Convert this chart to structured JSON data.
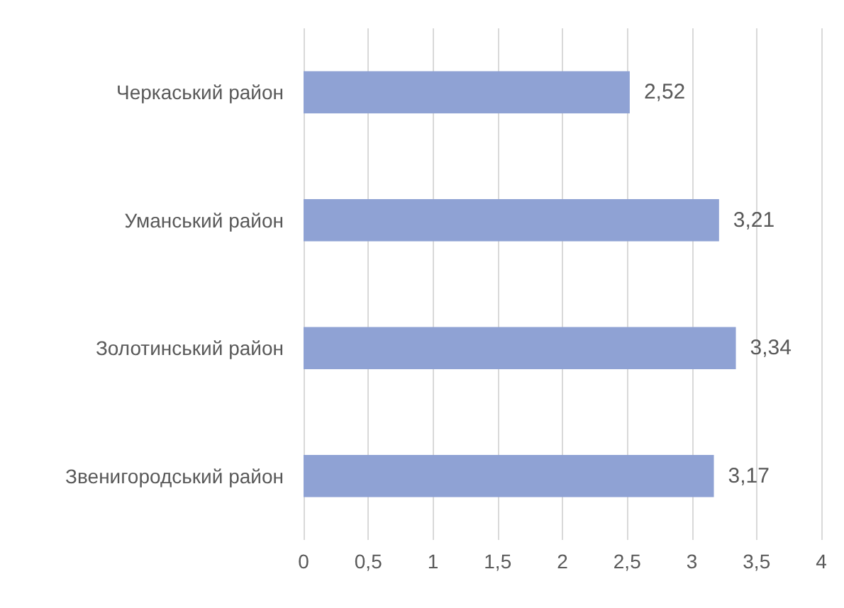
{
  "chart_data": {
    "type": "bar",
    "orientation": "horizontal",
    "categories": [
      "Черкаський район",
      "Уманський район",
      "Золотинський район",
      "Звенигородський район"
    ],
    "values": [
      2.52,
      3.21,
      3.34,
      3.17
    ],
    "value_labels": [
      "2,52",
      "3,21",
      "3,34",
      "3,17"
    ],
    "color": "#8fa2d4",
    "xlim": [
      0,
      4
    ],
    "xticks": [
      0,
      {
        "value": 0.5,
        "label": "0,5"
      },
      1,
      {
        "value": 1.5,
        "label": "1,5"
      },
      2,
      {
        "value": 2.5,
        "label": "2,5"
      },
      3,
      {
        "value": 3.5,
        "label": "3,5"
      },
      4
    ],
    "grid": "x"
  }
}
